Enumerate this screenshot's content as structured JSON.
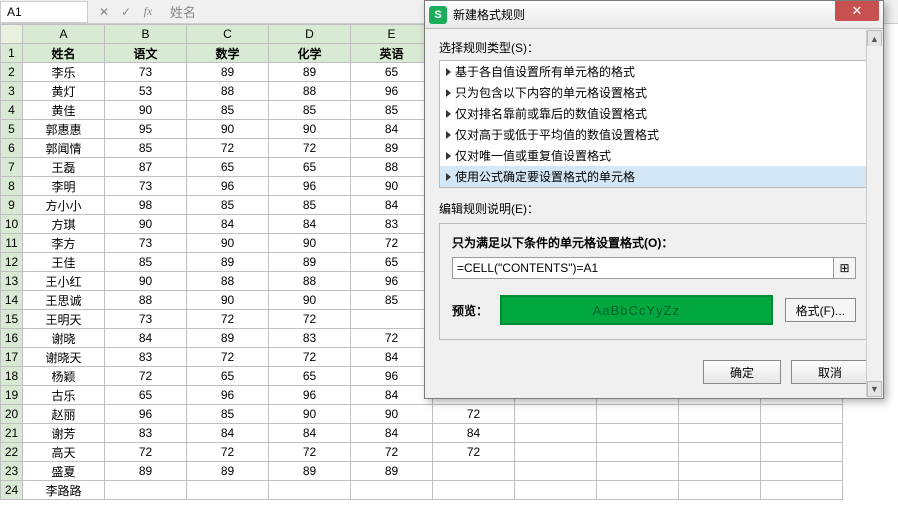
{
  "formula_bar": {
    "cell_ref": "A1",
    "display_text": "姓名",
    "cancel_icon": "✕",
    "confirm_icon": "✓",
    "fx_label": "fx"
  },
  "spreadsheet": {
    "columns": [
      "A",
      "B",
      "C",
      "D",
      "E",
      "F",
      "G",
      "H",
      "I",
      "J"
    ],
    "headers": [
      "姓名",
      "语文",
      "数学",
      "化学",
      "英语"
    ],
    "data_col_count": 5,
    "empty_col_count": 5,
    "row_count": 24,
    "selected_cell": {
      "row": 1,
      "col": 0
    },
    "header_bg": "#d8ead3",
    "rows": [
      [
        "李乐",
        "73",
        "89",
        "89",
        "65"
      ],
      [
        "黄灯",
        "53",
        "88",
        "88",
        "96"
      ],
      [
        "黄佳",
        "90",
        "85",
        "85",
        "85"
      ],
      [
        "郭惠惠",
        "95",
        "90",
        "90",
        "84"
      ],
      [
        "郭闻情",
        "85",
        "72",
        "72",
        "89"
      ],
      [
        "王磊",
        "87",
        "65",
        "65",
        "88"
      ],
      [
        "李明",
        "73",
        "96",
        "96",
        "90"
      ],
      [
        "方小小",
        "98",
        "85",
        "85",
        "84"
      ],
      [
        "方琪",
        "90",
        "84",
        "84",
        "83"
      ],
      [
        "李方",
        "73",
        "90",
        "90",
        "72"
      ],
      [
        "王佳",
        "85",
        "89",
        "89",
        "65"
      ],
      [
        "王小红",
        "90",
        "88",
        "88",
        "96"
      ],
      [
        "王思诚",
        "88",
        "90",
        "90",
        "85"
      ],
      [
        "王明天",
        "73",
        "72",
        "72",
        "",
        "96"
      ],
      [
        "谢晓",
        "84",
        "89",
        "83",
        "72",
        "84"
      ],
      [
        "谢晓天",
        "83",
        "72",
        "72",
        "84",
        "96"
      ],
      [
        "杨颖",
        "72",
        "65",
        "65",
        "96",
        "85"
      ],
      [
        "古乐",
        "65",
        "96",
        "96",
        "84",
        "84"
      ],
      [
        "赵丽",
        "96",
        "85",
        "90",
        "90",
        "72"
      ],
      [
        "谢芳",
        "83",
        "84",
        "84",
        "84",
        "84"
      ],
      [
        "高天",
        "72",
        "72",
        "72",
        "72",
        "72"
      ],
      [
        "盛夏",
        "89",
        "89",
        "89",
        "89",
        ""
      ],
      [
        "李路路",
        "",
        "",
        "",
        "",
        ""
      ]
    ]
  },
  "dialog": {
    "title": "新建格式规则",
    "logo_letter": "S",
    "close_glyph": "✕",
    "section_rule_type": "选择规则类型(S)：",
    "rule_types": [
      "基于各自值设置所有单元格的格式",
      "只为包含以下内容的单元格设置格式",
      "仅对排名靠前或靠后的数值设置格式",
      "仅对高于或低于平均值的数值设置格式",
      "仅对唯一值或重复值设置格式",
      "使用公式确定要设置格式的单元格"
    ],
    "selected_rule_index": 5,
    "edit_label": "编辑规则说明(E)：",
    "group_title": "只为满足以下条件的单元格设置格式(O)：",
    "formula_value": "=CELL(\"CONTENTS\")=A1",
    "preview_label": "预览：",
    "preview_text": "AaBbCcYyZz",
    "preview_bg": "#00a83f",
    "preview_border": "#008a33",
    "format_btn": "格式(F)...",
    "ok_btn": "确定",
    "cancel_btn": "取消",
    "pick_icon": "⊞"
  }
}
